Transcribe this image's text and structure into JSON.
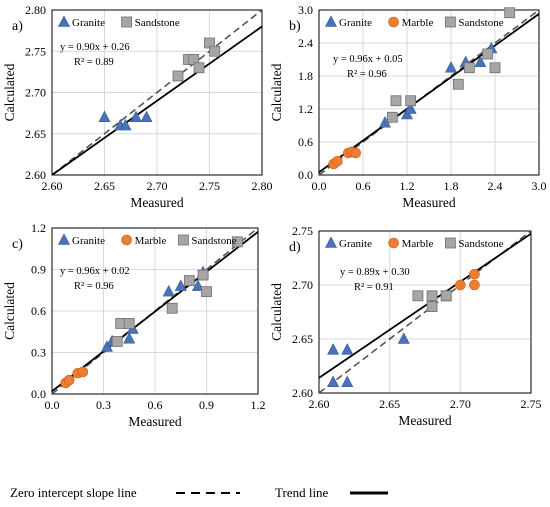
{
  "chart_data": [
    {
      "panel_label": "a)",
      "type": "scatter",
      "xlabel": "Measured",
      "ylabel": "Calculated",
      "xlim": [
        2.6,
        2.8
      ],
      "ylim": [
        2.6,
        2.8
      ],
      "xticks": [
        "2.60",
        "2.65",
        "2.70",
        "2.75",
        "2.80"
      ],
      "yticks": [
        "2.60",
        "2.65",
        "2.70",
        "2.75",
        "2.80"
      ],
      "legend": [
        "Granite",
        "Sandstone"
      ],
      "equation": "y = 0.90x + 0.26",
      "r2": "R² = 0.89",
      "trend": {
        "slope": 0.9,
        "intercept": 0.26
      },
      "series": [
        {
          "name": "Granite",
          "marker": "triangle",
          "color": "#4a72b8",
          "points": [
            [
              2.65,
              2.67
            ],
            [
              2.665,
              2.66
            ],
            [
              2.67,
              2.66
            ],
            [
              2.68,
              2.67
            ],
            [
              2.69,
              2.67
            ]
          ]
        },
        {
          "name": "Sandstone",
          "marker": "square",
          "color": "#a6a6a6",
          "points": [
            [
              2.72,
              2.72
            ],
            [
              2.73,
              2.74
            ],
            [
              2.735,
              2.74
            ],
            [
              2.74,
              2.73
            ],
            [
              2.75,
              2.76
            ],
            [
              2.755,
              2.75
            ]
          ]
        }
      ]
    },
    {
      "panel_label": "b)",
      "type": "scatter",
      "xlabel": "Measured",
      "ylabel": "Calculated",
      "xlim": [
        0.0,
        3.0
      ],
      "ylim": [
        0.0,
        3.0
      ],
      "xticks": [
        "0.0",
        "0.6",
        "1.2",
        "1.8",
        "2.4",
        "3.0"
      ],
      "yticks": [
        "0.0",
        "0.6",
        "1.2",
        "1.8",
        "2.4",
        "3.0"
      ],
      "legend": [
        "Granite",
        "Marble",
        "Sandstone"
      ],
      "equation": "y = 0.96x + 0.05",
      "r2": "R² = 0.96",
      "trend": {
        "slope": 0.96,
        "intercept": 0.05
      },
      "series": [
        {
          "name": "Granite",
          "marker": "triangle",
          "color": "#4a72b8",
          "points": [
            [
              0.9,
              0.95
            ],
            [
              1.2,
              1.1
            ],
            [
              1.25,
              1.2
            ],
            [
              1.8,
              1.95
            ],
            [
              2.0,
              2.05
            ],
            [
              2.2,
              2.05
            ],
            [
              2.35,
              2.3
            ]
          ]
        },
        {
          "name": "Marble",
          "marker": "circle",
          "color": "#ed7d31",
          "points": [
            [
              0.2,
              0.2
            ],
            [
              0.25,
              0.25
            ],
            [
              0.4,
              0.4
            ],
            [
              0.45,
              0.42
            ],
            [
              0.5,
              0.4
            ]
          ]
        },
        {
          "name": "Sandstone",
          "marker": "square",
          "color": "#a6a6a6",
          "points": [
            [
              1.0,
              1.05
            ],
            [
              1.05,
              1.35
            ],
            [
              1.25,
              1.35
            ],
            [
              1.9,
              1.65
            ],
            [
              2.05,
              1.95
            ],
            [
              2.3,
              2.2
            ],
            [
              2.4,
              1.95
            ],
            [
              2.6,
              2.95
            ]
          ]
        }
      ]
    },
    {
      "panel_label": "c)",
      "type": "scatter",
      "xlabel": "Measured",
      "ylabel": "Calculated",
      "xlim": [
        0.0,
        1.2
      ],
      "ylim": [
        0.0,
        1.2
      ],
      "xticks": [
        "0.0",
        "0.3",
        "0.6",
        "0.9",
        "1.2"
      ],
      "yticks": [
        "0.0",
        "0.3",
        "0.6",
        "0.9",
        "1.2"
      ],
      "legend": [
        "Granite",
        "Marble",
        "Sandstone"
      ],
      "equation": "y = 0.96x + 0.02",
      "r2": "R² = 0.96",
      "trend": {
        "slope": 0.96,
        "intercept": 0.02
      },
      "series": [
        {
          "name": "Granite",
          "marker": "triangle",
          "color": "#4a72b8",
          "points": [
            [
              0.32,
              0.34
            ],
            [
              0.35,
              0.38
            ],
            [
              0.45,
              0.4
            ],
            [
              0.47,
              0.47
            ],
            [
              0.68,
              0.74
            ],
            [
              0.75,
              0.78
            ],
            [
              0.85,
              0.78
            ],
            [
              0.88,
              0.88
            ]
          ]
        },
        {
          "name": "Marble",
          "marker": "circle",
          "color": "#ed7d31",
          "points": [
            [
              0.08,
              0.08
            ],
            [
              0.1,
              0.1
            ],
            [
              0.15,
              0.15
            ],
            [
              0.18,
              0.16
            ]
          ]
        },
        {
          "name": "Sandstone",
          "marker": "square",
          "color": "#a6a6a6",
          "points": [
            [
              0.38,
              0.38
            ],
            [
              0.4,
              0.51
            ],
            [
              0.45,
              0.51
            ],
            [
              0.7,
              0.62
            ],
            [
              0.8,
              0.82
            ],
            [
              0.88,
              0.86
            ],
            [
              0.9,
              0.74
            ],
            [
              1.08,
              1.1
            ]
          ]
        }
      ]
    },
    {
      "panel_label": "d)",
      "type": "scatter",
      "xlabel": "Measured",
      "ylabel": "Calculated",
      "xlim": [
        2.6,
        2.75
      ],
      "ylim": [
        2.6,
        2.75
      ],
      "xticks": [
        "2.60",
        "2.65",
        "2.70",
        "2.75"
      ],
      "yticks": [
        "2.60",
        "2.65",
        "2.70",
        "2.75"
      ],
      "legend": [
        "Granite",
        "Marble",
        "Sandstone"
      ],
      "equation": "y = 0.89x + 0.30",
      "r2": "R² = 0.91",
      "trend": {
        "slope": 0.89,
        "intercept": 0.3
      },
      "series": [
        {
          "name": "Granite",
          "marker": "triangle",
          "color": "#4a72b8",
          "points": [
            [
              2.61,
              2.64
            ],
            [
              2.62,
              2.64
            ],
            [
              2.61,
              2.61
            ],
            [
              2.62,
              2.61
            ],
            [
              2.66,
              2.65
            ]
          ]
        },
        {
          "name": "Marble",
          "marker": "circle",
          "color": "#ed7d31",
          "points": [
            [
              2.7,
              2.7
            ],
            [
              2.71,
              2.71
            ],
            [
              2.71,
              2.7
            ]
          ]
        },
        {
          "name": "Sandstone",
          "marker": "square",
          "color": "#a6a6a6",
          "points": [
            [
              2.67,
              2.69
            ],
            [
              2.68,
              2.69
            ],
            [
              2.68,
              2.68
            ],
            [
              2.69,
              2.69
            ],
            [
              2.69,
              2.69
            ]
          ]
        }
      ]
    }
  ],
  "footer": {
    "zero_line_label": "Zero intercept slope line",
    "trend_line_label": "Trend line"
  }
}
